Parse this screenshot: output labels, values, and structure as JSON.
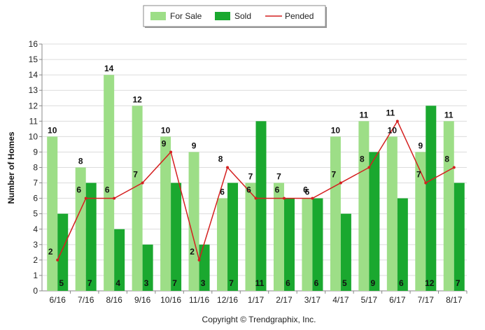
{
  "chart_data": {
    "type": "bar",
    "categories": [
      "6/16",
      "7/16",
      "8/16",
      "9/16",
      "10/16",
      "11/16",
      "12/16",
      "1/17",
      "2/17",
      "3/17",
      "4/17",
      "5/17",
      "6/17",
      "7/17",
      "8/17"
    ],
    "series": [
      {
        "name": "For Sale",
        "kind": "bar",
        "color": "#9dde87",
        "values": [
          10,
          8,
          14,
          12,
          10,
          9,
          6,
          7,
          7,
          6,
          10,
          11,
          10,
          9,
          11
        ]
      },
      {
        "name": "Sold",
        "kind": "bar",
        "color": "#1aa82f",
        "values": [
          5,
          7,
          4,
          3,
          7,
          3,
          7,
          11,
          6,
          6,
          5,
          9,
          6,
          12,
          7
        ]
      },
      {
        "name": "Pended",
        "kind": "line",
        "color": "#d42020",
        "values": [
          2,
          6,
          6,
          7,
          9,
          2,
          8,
          6,
          6,
          6,
          7,
          8,
          11,
          7,
          8
        ]
      }
    ],
    "ylabel": "Number of Homes",
    "xlabel": "",
    "ylim": [
      0,
      16
    ],
    "yticks": [
      0,
      1,
      2,
      3,
      4,
      5,
      6,
      7,
      8,
      9,
      10,
      11,
      12,
      13,
      14,
      15,
      16
    ],
    "grid": true,
    "legend_position": "top-center",
    "caption": "Copyright © Trendgraphix, Inc."
  }
}
